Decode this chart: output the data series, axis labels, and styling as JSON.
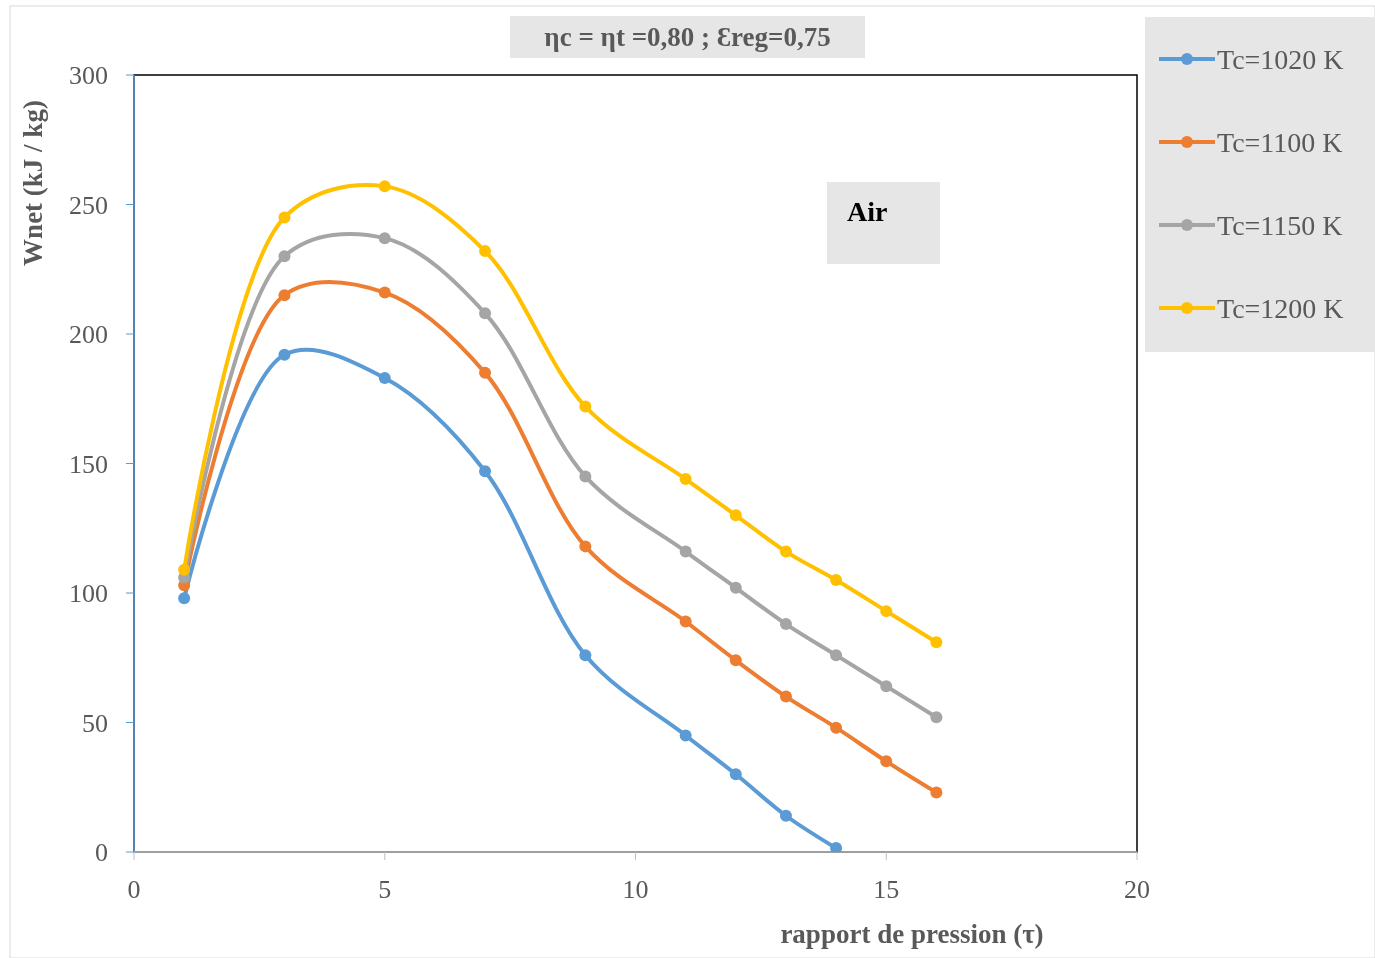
{
  "chart_data": {
    "type": "line",
    "title": "ηc = ηt =0,80 ; Ɛreg=0,75",
    "xlabel": "rapport de pression (τ)",
    "ylabel": "Wnet (kJ / kg)",
    "annotations": [
      "Air"
    ],
    "x": [
      1,
      3,
      5,
      7,
      9,
      11,
      12,
      13,
      14,
      15,
      16
    ],
    "xlim": [
      0,
      20
    ],
    "xticks": [
      0,
      5,
      10,
      15,
      20
    ],
    "ylim": [
      0,
      300
    ],
    "yticks": [
      0,
      50,
      100,
      150,
      200,
      250,
      300
    ],
    "grid": false,
    "legend": "right",
    "marker": "circle",
    "line_style": "solid",
    "series": [
      {
        "name": "Tc=1020 K",
        "color": "#5b9bd5",
        "x": [
          1,
          3,
          5,
          7,
          9,
          11,
          12,
          13,
          14
        ],
        "values": [
          98,
          192,
          183,
          147,
          76,
          45,
          30,
          14,
          1.5
        ]
      },
      {
        "name": "Tc=1100 K",
        "color": "#ed7d31",
        "values": [
          103,
          215,
          216,
          185,
          118,
          89,
          74,
          60,
          48,
          35,
          23
        ]
      },
      {
        "name": "Tc=1150 K",
        "color": "#a5a5a5",
        "values": [
          106,
          230,
          237,
          208,
          145,
          116,
          102,
          88,
          76,
          64,
          52
        ]
      },
      {
        "name": "Tc=1200 K",
        "color": "#ffc000",
        "values": [
          109,
          245,
          257,
          232,
          172,
          144,
          130,
          116,
          105,
          93,
          81
        ]
      }
    ]
  }
}
